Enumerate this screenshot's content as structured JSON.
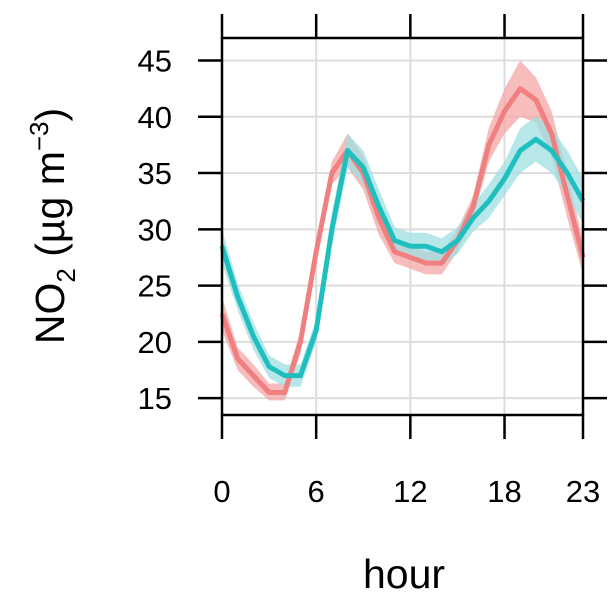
{
  "chart_data": {
    "type": "line",
    "xlabel": "hour",
    "ylabel": {
      "main": "NO",
      "sub": "2",
      "units_prefix": " (µg m",
      "units_sup": "−3",
      "units_suffix": ")"
    },
    "x_ticks": [
      0,
      6,
      12,
      18,
      23
    ],
    "y_ticks": [
      15,
      20,
      25,
      30,
      35,
      40,
      45
    ],
    "xlim": [
      0,
      23
    ],
    "ylim": [
      13.5,
      47
    ],
    "grid": true,
    "x": [
      0,
      1,
      2,
      3,
      4,
      5,
      6,
      7,
      8,
      9,
      10,
      11,
      12,
      13,
      14,
      15,
      16,
      17,
      18,
      19,
      20,
      21,
      22,
      23
    ],
    "series": [
      {
        "color": "#F08080",
        "band_color": "#F4A6A6",
        "values": [
          22.5,
          18.5,
          17.0,
          15.5,
          15.5,
          20.0,
          28.0,
          35.0,
          37.0,
          35.0,
          31.0,
          28.0,
          27.5,
          27.0,
          27.0,
          29.0,
          32.0,
          37.5,
          40.5,
          42.5,
          41.5,
          38.5,
          33.0,
          27.5
        ],
        "lower": [
          21.0,
          17.5,
          16.0,
          14.8,
          14.8,
          19.0,
          27.0,
          34.0,
          35.5,
          33.5,
          29.5,
          27.0,
          26.5,
          26.0,
          26.0,
          28.0,
          31.0,
          36.0,
          38.5,
          40.0,
          39.5,
          36.5,
          31.0,
          26.0
        ],
        "upper": [
          24.0,
          19.5,
          18.0,
          16.3,
          16.3,
          21.0,
          29.0,
          36.0,
          38.5,
          36.5,
          32.5,
          29.0,
          28.5,
          28.0,
          28.0,
          30.0,
          33.0,
          39.0,
          42.5,
          45.0,
          43.5,
          40.5,
          35.0,
          29.0
        ]
      },
      {
        "color": "#20BFBF",
        "band_color": "#9FDFE2",
        "values": [
          28.5,
          24.0,
          20.5,
          17.8,
          17.0,
          17.0,
          21.0,
          30.0,
          37.0,
          35.5,
          32.0,
          29.0,
          28.5,
          28.5,
          28.0,
          29.0,
          31.0,
          32.5,
          34.5,
          37.0,
          38.0,
          37.0,
          35.0,
          32.5
        ],
        "lower": [
          27.0,
          22.8,
          19.3,
          16.8,
          16.0,
          16.0,
          20.0,
          28.5,
          35.5,
          34.0,
          30.5,
          27.8,
          27.3,
          27.3,
          26.8,
          27.8,
          29.8,
          31.0,
          33.0,
          35.0,
          36.0,
          35.0,
          33.0,
          30.5
        ],
        "upper": [
          30.0,
          25.2,
          21.7,
          18.8,
          18.0,
          18.0,
          22.0,
          31.5,
          38.5,
          37.0,
          33.5,
          30.2,
          29.7,
          29.7,
          29.2,
          30.2,
          32.2,
          34.0,
          36.0,
          39.0,
          40.0,
          39.0,
          37.0,
          34.5
        ]
      }
    ]
  }
}
